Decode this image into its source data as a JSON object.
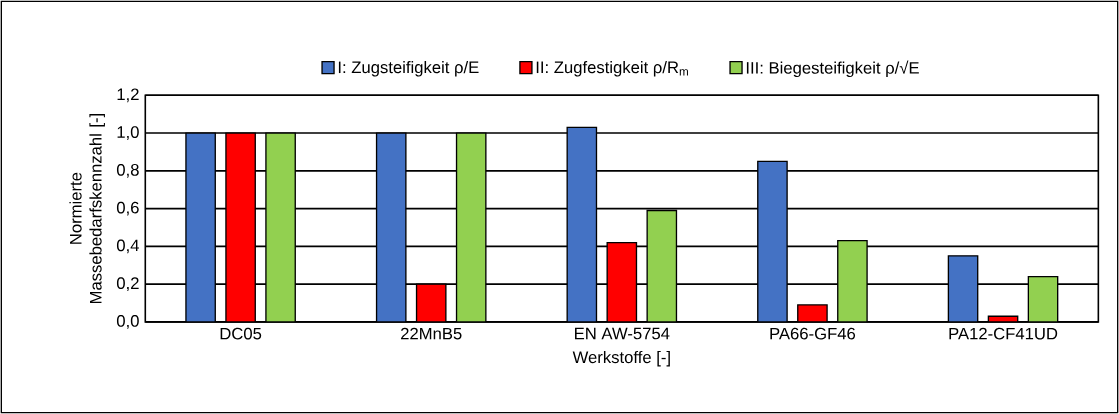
{
  "chart_data": {
    "type": "bar",
    "categories": [
      "DC05",
      "22MnB5",
      "EN AW-5754",
      "PA66-GF46",
      "PA12-CF41UD"
    ],
    "series": [
      {
        "name": "I: Zugsteifigkeit ρ/E",
        "color": "#4472c4",
        "values": [
          1.0,
          1.0,
          1.03,
          0.85,
          0.35
        ]
      },
      {
        "name": "II: Zugfestigkeit ρ/R$_{m}$",
        "color": "#ff0000",
        "values": [
          1.0,
          0.2,
          0.42,
          0.09,
          0.03
        ]
      },
      {
        "name": "III: Biegesteifigkeit ρ/√E",
        "color": "#92d050",
        "values": [
          1.0,
          1.0,
          0.59,
          0.43,
          0.24
        ]
      }
    ],
    "xlabel": "Werkstoffe [-]",
    "ylabel": "Normierte Massebedarfskennzahl [-]",
    "ylim": [
      0,
      1.2
    ],
    "yticks": [
      {
        "value": 0,
        "label": "0,0"
      },
      {
        "value": 0.2,
        "label": "0,2"
      },
      {
        "value": 0.4,
        "label": "0,4"
      },
      {
        "value": 0.6,
        "label": "0,6"
      },
      {
        "value": 0.8,
        "label": "0,8"
      },
      {
        "value": 1.0,
        "label": "1,0"
      },
      {
        "value": 1.2,
        "label": "1,2"
      }
    ],
    "grid": "y",
    "legend": "top"
  }
}
